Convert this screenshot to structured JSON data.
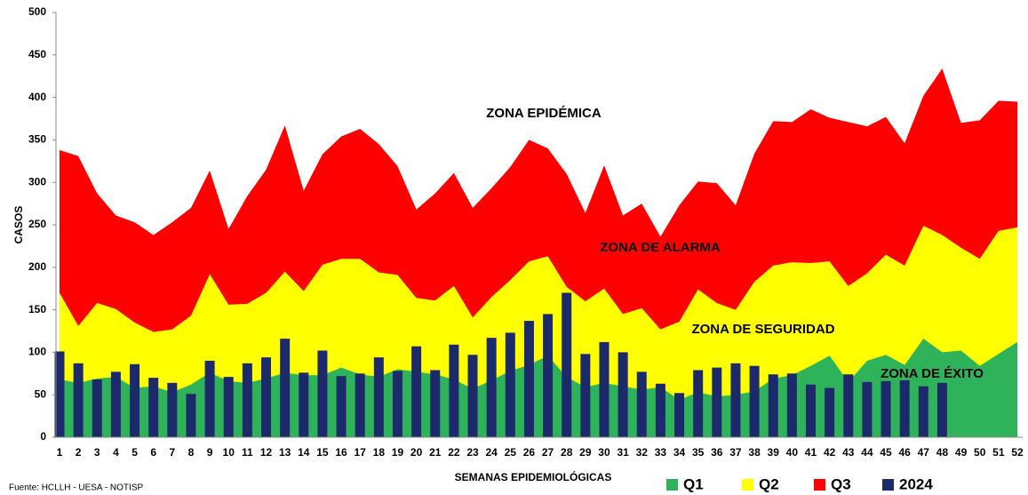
{
  "chart_data": {
    "type": "area",
    "annotations": [
      "ZONA EPIDÉMICA",
      "ZONA DE ALARMA",
      "ZONA DE SEGURIDAD",
      "ZONA DE ÉXITO"
    ],
    "x_label": "SEMANAS EPIDEMIOLÓGICAS",
    "y_label": "CASOS",
    "source": "Fuente: HCLLH - UESA - NOTISP",
    "categories": [
      "1",
      "2",
      "3",
      "4",
      "5",
      "6",
      "7",
      "8",
      "9",
      "10",
      "11",
      "12",
      "13",
      "14",
      "15",
      "16",
      "17",
      "18",
      "19",
      "20",
      "21",
      "22",
      "23",
      "24",
      "25",
      "26",
      "27",
      "28",
      "29",
      "30",
      "31",
      "32",
      "33",
      "34",
      "35",
      "36",
      "37",
      "38",
      "39",
      "40",
      "41",
      "42",
      "43",
      "44",
      "45",
      "46",
      "47",
      "48",
      "49",
      "50",
      "51",
      "52"
    ],
    "ylim": [
      0,
      500
    ],
    "yticks": [
      0,
      50,
      100,
      150,
      200,
      250,
      300,
      350,
      400,
      450,
      500
    ],
    "grid": false,
    "legend": "bottom-right",
    "series": [
      {
        "name": "Q1",
        "color": "#2eb35a",
        "type": "area",
        "values": [
          68,
          64,
          69,
          71,
          58,
          60,
          53,
          62,
          76,
          66,
          64,
          69,
          76,
          73,
          73,
          82,
          74,
          71,
          80,
          77,
          74,
          68,
          57,
          67,
          78,
          85,
          96,
          71,
          59,
          64,
          60,
          56,
          59,
          44,
          53,
          48,
          50,
          54,
          69,
          73,
          84,
          96,
          65,
          90,
          97,
          85,
          116,
          100,
          102,
          84,
          98,
          112
        ]
      },
      {
        "name": "Q2",
        "color": "#ffff00",
        "type": "area",
        "values": [
          170,
          131,
          158,
          151,
          135,
          124,
          127,
          143,
          192,
          156,
          157,
          170,
          195,
          172,
          203,
          210,
          210,
          194,
          191,
          164,
          161,
          178,
          141,
          165,
          185,
          207,
          213,
          177,
          160,
          175,
          145,
          152,
          127,
          136,
          174,
          158,
          150,
          183,
          202,
          206,
          205,
          207,
          178,
          193,
          215,
          202,
          249,
          238,
          223,
          210,
          243,
          247
        ]
      },
      {
        "name": "Q3",
        "color": "#ff0000",
        "type": "area",
        "values": [
          338,
          331,
          287,
          261,
          253,
          238,
          253,
          270,
          314,
          245,
          284,
          315,
          367,
          290,
          333,
          354,
          363,
          345,
          319,
          268,
          287,
          311,
          270,
          293,
          318,
          350,
          340,
          310,
          264,
          320,
          261,
          275,
          236,
          273,
          301,
          299,
          273,
          334,
          372,
          371,
          386,
          376,
          371,
          366,
          377,
          346,
          402,
          434,
          370,
          373,
          396,
          395
        ]
      },
      {
        "name": "2024",
        "color": "#1c2a6b",
        "type": "bar",
        "values": [
          101,
          87,
          68,
          77,
          86,
          70,
          64,
          51,
          90,
          71,
          87,
          94,
          116,
          76,
          102,
          72,
          75,
          94,
          78,
          107,
          79,
          109,
          97,
          117,
          123,
          137,
          145,
          170,
          98,
          112,
          100,
          77,
          63,
          52,
          79,
          82,
          87,
          84,
          74,
          75,
          62,
          58,
          74,
          65,
          66,
          67,
          60,
          64,
          null,
          null,
          null,
          null
        ]
      }
    ]
  }
}
